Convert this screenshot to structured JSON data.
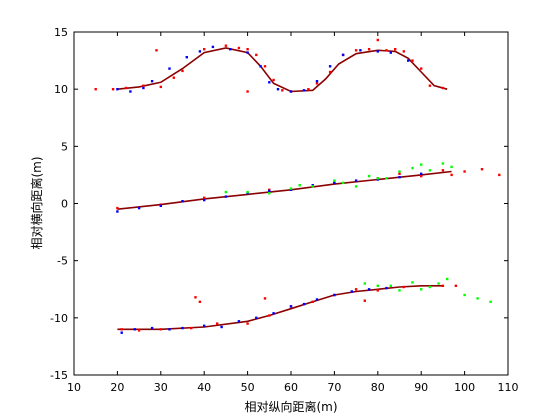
{
  "chart_data": {
    "type": "scatter",
    "xlabel": "相对纵向距离(m)",
    "ylabel": "相对横向距离(m)",
    "xlim": [
      10,
      110
    ],
    "ylim": [
      -15,
      15
    ],
    "xticks": [
      10,
      20,
      30,
      40,
      50,
      60,
      70,
      80,
      90,
      100,
      110
    ],
    "yticks": [
      -15,
      -10,
      -5,
      0,
      5,
      10,
      15
    ],
    "grid": false,
    "colors": {
      "red": "#ff0000",
      "blue": "#0000ff",
      "green": "#00ff00",
      "curve": "#8b0000"
    },
    "series": [
      {
        "color": "red",
        "points": [
          [
            15,
            10
          ],
          [
            19,
            10
          ],
          [
            22,
            10.1
          ],
          [
            26,
            10.3
          ],
          [
            29,
            13.4
          ],
          [
            30,
            10.2
          ],
          [
            33,
            11
          ],
          [
            35,
            11.6
          ],
          [
            40,
            13.5
          ],
          [
            45,
            13.8
          ],
          [
            48,
            13.6
          ],
          [
            50,
            13.5
          ],
          [
            50,
            9.8
          ],
          [
            52,
            13
          ],
          [
            54,
            12
          ],
          [
            56,
            10.8
          ],
          [
            58,
            9.9
          ],
          [
            60,
            9.8
          ],
          [
            64,
            10
          ],
          [
            66,
            10.5
          ],
          [
            69,
            11.5
          ],
          [
            72,
            13
          ],
          [
            75,
            13.4
          ],
          [
            78,
            13.5
          ],
          [
            80,
            14.3
          ],
          [
            82,
            13.4
          ],
          [
            84,
            13.5
          ],
          [
            86,
            13.3
          ],
          [
            88,
            12.5
          ],
          [
            90,
            11.8
          ],
          [
            92,
            10.3
          ],
          [
            95,
            10.1
          ],
          [
            20,
            -0.4
          ],
          [
            30,
            -0.1
          ],
          [
            40,
            0.5
          ],
          [
            55,
            1.2
          ],
          [
            70,
            1.8
          ],
          [
            80,
            2.2
          ],
          [
            85,
            2.6
          ],
          [
            90,
            2.4
          ],
          [
            95,
            2.9
          ],
          [
            97,
            2.5
          ],
          [
            100,
            2.8
          ],
          [
            104,
            3
          ],
          [
            108,
            2.5
          ],
          [
            21,
            -11
          ],
          [
            25,
            -11.1
          ],
          [
            30,
            -11
          ],
          [
            37,
            -10.9
          ],
          [
            38,
            -8.2
          ],
          [
            39,
            -8.6
          ],
          [
            43,
            -10.5
          ],
          [
            50,
            -10.5
          ],
          [
            54,
            -8.3
          ],
          [
            55,
            -9.8
          ],
          [
            60,
            -9
          ],
          [
            65,
            -8.6
          ],
          [
            70,
            -8
          ],
          [
            75,
            -7.5
          ],
          [
            77,
            -8.5
          ],
          [
            80,
            -7.6
          ],
          [
            86,
            -7.3
          ],
          [
            95,
            -7.2
          ],
          [
            98,
            -7.2
          ]
        ]
      },
      {
        "color": "blue",
        "points": [
          [
            20,
            10
          ],
          [
            23,
            9.8
          ],
          [
            26,
            10.1
          ],
          [
            28,
            10.7
          ],
          [
            32,
            11.8
          ],
          [
            36,
            12.8
          ],
          [
            39,
            13.3
          ],
          [
            42,
            13.7
          ],
          [
            46,
            13.5
          ],
          [
            50,
            13.2
          ],
          [
            53,
            12
          ],
          [
            55,
            10.6
          ],
          [
            57,
            10
          ],
          [
            60,
            9.8
          ],
          [
            63,
            9.9
          ],
          [
            66,
            10.7
          ],
          [
            69,
            12
          ],
          [
            72,
            13
          ],
          [
            76,
            13.4
          ],
          [
            80,
            13.3
          ],
          [
            83,
            13.2
          ],
          [
            87,
            12.5
          ],
          [
            20,
            -0.7
          ],
          [
            25,
            -0.4
          ],
          [
            30,
            -0.2
          ],
          [
            35,
            0.2
          ],
          [
            40,
            0.3
          ],
          [
            45,
            0.6
          ],
          [
            50,
            0.9
          ],
          [
            55,
            1.1
          ],
          [
            60,
            1.2
          ],
          [
            65,
            1.6
          ],
          [
            70,
            1.8
          ],
          [
            75,
            2
          ],
          [
            80,
            2.1
          ],
          [
            85,
            2.3
          ],
          [
            90,
            2.6
          ],
          [
            21,
            -11.3
          ],
          [
            24,
            -11
          ],
          [
            28,
            -10.9
          ],
          [
            32,
            -11
          ],
          [
            35,
            -10.9
          ],
          [
            40,
            -10.7
          ],
          [
            44,
            -10.8
          ],
          [
            48,
            -10.3
          ],
          [
            52,
            -10
          ],
          [
            56,
            -9.6
          ],
          [
            60,
            -9
          ],
          [
            63,
            -8.8
          ],
          [
            66,
            -8.4
          ],
          [
            70,
            -8
          ],
          [
            74,
            -7.7
          ],
          [
            78,
            -7.5
          ],
          [
            82,
            -7.4
          ]
        ]
      },
      {
        "color": "green",
        "points": [
          [
            45,
            1
          ],
          [
            50,
            1
          ],
          [
            55,
            0.9
          ],
          [
            60,
            1.3
          ],
          [
            62,
            1.6
          ],
          [
            65,
            1.5
          ],
          [
            70,
            2
          ],
          [
            72,
            1.8
          ],
          [
            75,
            1.5
          ],
          [
            78,
            2.4
          ],
          [
            80,
            2.2
          ],
          [
            82,
            2.2
          ],
          [
            85,
            2.8
          ],
          [
            88,
            3.1
          ],
          [
            90,
            3.4
          ],
          [
            92,
            2.9
          ],
          [
            95,
            3.5
          ],
          [
            97,
            3.2
          ],
          [
            77,
            -7
          ],
          [
            80,
            -7.2
          ],
          [
            83,
            -7.2
          ],
          [
            85,
            -7.6
          ],
          [
            88,
            -6.9
          ],
          [
            90,
            -7.5
          ],
          [
            92,
            -7.3
          ],
          [
            94,
            -7
          ],
          [
            96,
            -6.6
          ],
          [
            100,
            -8
          ],
          [
            103,
            -8.3
          ],
          [
            106,
            -8.6
          ]
        ]
      }
    ],
    "fit_curves": [
      {
        "color": "curve",
        "points": [
          [
            20,
            10
          ],
          [
            25,
            10.2
          ],
          [
            30,
            10.6
          ],
          [
            35,
            11.8
          ],
          [
            40,
            13.2
          ],
          [
            45,
            13.6
          ],
          [
            50,
            13.2
          ],
          [
            53,
            12
          ],
          [
            56,
            10.5
          ],
          [
            60,
            9.8
          ],
          [
            65,
            9.9
          ],
          [
            68,
            10.9
          ],
          [
            71,
            12.2
          ],
          [
            75,
            13.1
          ],
          [
            80,
            13.4
          ],
          [
            84,
            13.3
          ],
          [
            87,
            12.7
          ],
          [
            90,
            11.5
          ],
          [
            93,
            10.3
          ],
          [
            96,
            10
          ]
        ]
      },
      {
        "color": "curve",
        "points": [
          [
            20,
            -0.5
          ],
          [
            30,
            -0.1
          ],
          [
            40,
            0.4
          ],
          [
            50,
            0.8
          ],
          [
            60,
            1.2
          ],
          [
            70,
            1.7
          ],
          [
            80,
            2.1
          ],
          [
            90,
            2.5
          ],
          [
            97,
            2.8
          ]
        ]
      },
      {
        "color": "curve",
        "points": [
          [
            20,
            -11
          ],
          [
            30,
            -11
          ],
          [
            40,
            -10.8
          ],
          [
            50,
            -10.3
          ],
          [
            55,
            -9.8
          ],
          [
            60,
            -9.2
          ],
          [
            65,
            -8.6
          ],
          [
            70,
            -8
          ],
          [
            75,
            -7.7
          ],
          [
            80,
            -7.5
          ],
          [
            85,
            -7.3
          ],
          [
            90,
            -7.2
          ],
          [
            95,
            -7.2
          ]
        ]
      }
    ]
  }
}
